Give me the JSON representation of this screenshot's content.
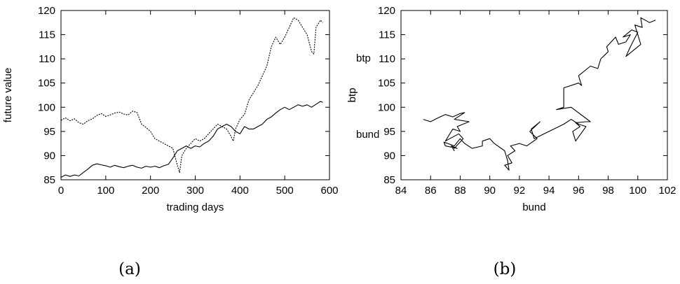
{
  "chart_data": [
    {
      "type": "line",
      "panel_label": "(a)",
      "xlabel": "trading days",
      "ylabel": "future value",
      "xlim": [
        0,
        600
      ],
      "ylim": [
        85,
        120
      ],
      "xticks": [
        "0",
        "100",
        "200",
        "300",
        "400",
        "500",
        "600"
      ],
      "yticks": [
        "85",
        "90",
        "95",
        "100",
        "105",
        "110",
        "115",
        "120"
      ],
      "grid": false,
      "series": [
        {
          "name": "btp",
          "style": "dashed",
          "x": [
            0,
            10,
            20,
            30,
            40,
            50,
            60,
            70,
            80,
            90,
            100,
            110,
            120,
            130,
            140,
            150,
            160,
            170,
            180,
            190,
            200,
            210,
            220,
            230,
            240,
            250,
            260,
            265,
            270,
            280,
            290,
            300,
            310,
            320,
            330,
            340,
            350,
            360,
            370,
            380,
            385,
            390,
            400,
            410,
            420,
            430,
            440,
            450,
            460,
            470,
            480,
            490,
            500,
            510,
            520,
            530,
            540,
            550,
            560,
            565,
            570,
            580,
            585
          ],
          "y": [
            97.3,
            97.8,
            97.2,
            97.6,
            96.8,
            96.5,
            97.2,
            97.6,
            98.3,
            98.7,
            98.1,
            98.4,
            98.8,
            99.0,
            98.6,
            98.4,
            99.2,
            98.9,
            96.5,
            95.8,
            95.0,
            93.5,
            93.0,
            92.5,
            92.0,
            91.5,
            88.0,
            86.5,
            90.0,
            91.5,
            92.5,
            93.5,
            93.0,
            93.5,
            94.5,
            95.5,
            96.5,
            96.0,
            95.5,
            94.0,
            93.0,
            95.5,
            97.5,
            98.5,
            101.5,
            103.0,
            104.5,
            106.5,
            108.5,
            112.5,
            114.5,
            113.0,
            114.5,
            116.5,
            118.5,
            118.0,
            116.5,
            115.0,
            111.5,
            111.0,
            116.5,
            118.0,
            117.5
          ]
        },
        {
          "name": "bund",
          "style": "solid",
          "x": [
            0,
            10,
            20,
            30,
            40,
            50,
            60,
            70,
            80,
            90,
            100,
            110,
            120,
            130,
            140,
            150,
            160,
            170,
            180,
            190,
            200,
            210,
            220,
            230,
            240,
            250,
            260,
            270,
            280,
            290,
            300,
            310,
            320,
            330,
            340,
            350,
            360,
            370,
            380,
            390,
            400,
            410,
            420,
            430,
            440,
            450,
            460,
            470,
            480,
            490,
            500,
            510,
            520,
            530,
            540,
            550,
            560,
            570,
            580,
            585
          ],
          "y": [
            85.5,
            86.0,
            85.7,
            86.0,
            85.8,
            86.5,
            87.2,
            88.0,
            88.3,
            88.1,
            87.9,
            87.6,
            88.0,
            87.7,
            87.5,
            87.8,
            88.0,
            87.6,
            87.4,
            87.8,
            87.6,
            87.8,
            87.5,
            87.9,
            88.2,
            89.5,
            91.0,
            91.5,
            92.0,
            91.5,
            92.0,
            91.8,
            92.5,
            93.0,
            94.0,
            95.5,
            96.0,
            96.5,
            96.0,
            95.0,
            94.5,
            96.0,
            95.5,
            95.5,
            96.0,
            96.5,
            97.5,
            98.0,
            98.8,
            99.5,
            100.0,
            99.5,
            100.0,
            100.5,
            100.2,
            100.5,
            100.0,
            100.6,
            101.2,
            101.0
          ]
        }
      ]
    },
    {
      "type": "line",
      "panel_label": "(b)",
      "xlabel": "bund",
      "ylabel": "btp",
      "xlim": [
        84,
        102
      ],
      "ylim": [
        85,
        120
      ],
      "xticks": [
        "84",
        "86",
        "88",
        "90",
        "92",
        "94",
        "96",
        "98",
        "100",
        "102"
      ],
      "yticks": [
        "85",
        "90",
        "95",
        "100",
        "105",
        "110",
        "115",
        "120"
      ],
      "grid": false,
      "series": [
        {
          "style": "solid",
          "x": [
            85.5,
            86.0,
            86.5,
            87.0,
            87.5,
            88.0,
            88.3,
            87.6,
            88.6,
            87.8,
            88.0,
            87.5,
            87.0,
            87.9,
            88.2,
            87.6,
            87.4,
            87.6,
            87.4,
            87.8,
            87.0,
            86.9,
            87.6,
            88.0,
            88.3,
            88.8,
            89.5,
            89.5,
            90.0,
            90.3,
            91.0,
            91.2,
            91.3,
            91.0,
            91.5,
            91.2,
            91.7,
            91.4,
            92.0,
            92.5,
            93.2,
            92.7,
            93.4,
            92.8,
            93.0,
            94.0,
            95.0,
            95.5,
            96.0,
            96.5,
            95.8,
            95.6,
            96.1,
            95.8,
            96.5,
            96.8,
            95.5,
            94.5,
            95.0,
            95.0,
            96.0,
            96.2,
            96.0,
            96.8,
            97.3,
            97.5,
            98.0,
            97.9,
            98.5,
            98.7,
            99.2,
            99.5,
            99.0,
            99.6,
            100.0,
            99.5,
            99.2,
            100.2,
            99.8,
            100.3,
            100.2,
            100.8,
            101.2
          ],
          "y": [
            97.5,
            97.0,
            97.8,
            98.5,
            98.0,
            98.7,
            98.9,
            97.5,
            97.0,
            96.0,
            95.0,
            95.5,
            93.0,
            94.5,
            93.5,
            91.5,
            92.0,
            91.0,
            92.0,
            91.5,
            92.0,
            92.8,
            92.0,
            93.5,
            92.5,
            91.5,
            92.0,
            93.0,
            93.5,
            92.5,
            91.0,
            89.0,
            87.0,
            88.0,
            88.5,
            90.0,
            91.0,
            92.0,
            92.5,
            92.0,
            93.5,
            95.0,
            97.0,
            95.5,
            93.5,
            95.0,
            96.5,
            97.5,
            96.5,
            96.0,
            93.0,
            95.0,
            96.0,
            96.8,
            97.0,
            97.0,
            100.0,
            99.5,
            100.0,
            104.0,
            105.0,
            104.5,
            106.5,
            108.5,
            108.0,
            110.0,
            111.5,
            112.5,
            114.5,
            113.0,
            113.5,
            115.0,
            114.5,
            116.0,
            115.5,
            112.5,
            110.5,
            113.0,
            117.0,
            116.5,
            118.5,
            117.5,
            118.0
          ]
        }
      ]
    }
  ]
}
